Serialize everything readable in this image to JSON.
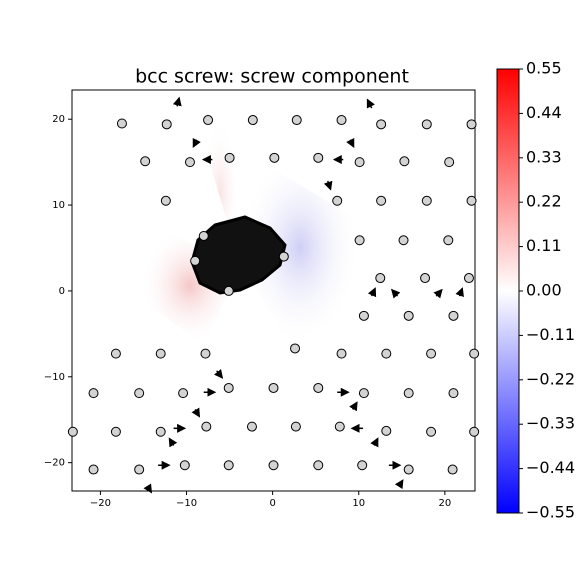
{
  "chart_data": {
    "type": "quiver",
    "title": "bcc screw: screw component",
    "xlim": [
      -23.3,
      23.5
    ],
    "ylim": [
      -23.3,
      23.4
    ],
    "xticks": [
      {
        "value": -20,
        "label": "−20"
      },
      {
        "value": -10,
        "label": "−10"
      },
      0,
      10,
      20
    ],
    "yticks": [
      {
        "value": -20,
        "label": "−20"
      },
      {
        "value": -10,
        "label": "−10"
      },
      0,
      10,
      20
    ],
    "atoms": {
      "color": "#d3d3d3",
      "x": [
        -17.5,
        -12.3,
        -7.5,
        -2.3,
        2.8,
        8.0,
        12.6,
        17.9,
        23.1,
        -14.8,
        -9.6,
        -5.0,
        0.2,
        5.3,
        10.1,
        15.3,
        20.5,
        -12.4,
        7.5,
        12.6,
        17.9,
        23.1,
        10.1,
        15.2,
        20.4,
        12.5,
        17.7,
        22.8,
        10.6,
        15.8,
        21.0,
        -8.0,
        -9.0,
        -5.1,
        1.3,
        2.6,
        -18.2,
        -13.0,
        -7.8,
        8.0,
        13.2,
        18.4,
        23.4,
        -20.8,
        -15.5,
        -10.4,
        -5.1,
        0.1,
        5.3,
        10.6,
        15.8,
        21.0,
        -23.2,
        -18.2,
        -13.0,
        -7.7,
        -2.4,
        2.7,
        7.8,
        13.2,
        18.4,
        23.4,
        -20.8,
        -15.5,
        -10.2,
        -5.1,
        0.1,
        5.3,
        10.4,
        15.8,
        20.9
      ],
      "y": [
        19.5,
        19.4,
        19.9,
        19.9,
        19.9,
        19.9,
        19.4,
        19.4,
        19.4,
        15.1,
        15.0,
        15.5,
        15.5,
        15.5,
        15.0,
        15.1,
        15.0,
        10.5,
        10.5,
        10.5,
        10.5,
        10.5,
        5.9,
        5.9,
        5.9,
        1.5,
        1.5,
        1.5,
        -2.9,
        -2.9,
        -2.9,
        6.4,
        3.5,
        0.0,
        4.0,
        -6.7,
        -7.3,
        -7.3,
        -7.3,
        -7.3,
        -7.3,
        -7.3,
        -7.3,
        -11.9,
        -11.9,
        -11.9,
        -11.3,
        -11.3,
        -11.3,
        -11.9,
        -11.9,
        -11.9,
        -16.4,
        -16.4,
        -16.4,
        -15.8,
        -15.8,
        -15.8,
        -15.8,
        -16.3,
        -16.4,
        -16.4,
        -20.8,
        -20.8,
        -20.3,
        -20.3,
        -20.3,
        -20.3,
        -20.3,
        -20.8,
        -20.8
      ]
    },
    "arrows": {
      "color": "#000000",
      "x": [
        -11.1,
        11.5,
        -8.8,
        9.0,
        -7.0,
        8.2,
        6.4,
        11.5,
        14.5,
        19.0,
        21.7,
        -6.5,
        -8.0,
        7.5,
        -9.0,
        9.3,
        -11.5,
        10.5,
        -11.5,
        11.8,
        -13.3,
        13.5,
        -14.5,
        14.7
      ],
      "y": [
        21.5,
        21.3,
        17.6,
        17.6,
        15.3,
        15.3,
        12.8,
        -0.6,
        -0.6,
        -0.6,
        -0.6,
        -9.3,
        -11.8,
        -11.8,
        -13.8,
        -13.8,
        -16.0,
        -16.0,
        -18.0,
        -18.0,
        -20.3,
        -20.3,
        -22.8,
        -22.7
      ],
      "u": [
        0.3,
        -0.6,
        -0.5,
        0.5,
        -1.3,
        -1.3,
        0.4,
        0.5,
        -0.8,
        0.8,
        0.4,
        0.8,
        1.6,
        1.6,
        0.6,
        0.6,
        1.6,
        -1.6,
        -0.6,
        0.5,
        1.6,
        1.6,
        0.5,
        0.5
      ],
      "v": [
        1.2,
        1.2,
        -1.0,
        -1.0,
        0,
        0,
        -1.2,
        1.1,
        0.9,
        0.9,
        1.1,
        -1.0,
        0,
        0,
        -1.0,
        1.0,
        0,
        0,
        1.0,
        1.0,
        0,
        0,
        -0.8,
        0.8
      ]
    },
    "colorbar": {
      "cmap": "bwr",
      "clim": [
        -0.55,
        0.55
      ],
      "ticks": [
        0.55,
        0.44,
        0.33,
        0.22,
        0.11,
        {
          "value": 0,
          "label": "0.00"
        },
        {
          "value": -0.11,
          "label": "−0.11"
        },
        {
          "value": -0.22,
          "label": "−0.22"
        },
        {
          "value": -0.33,
          "label": "−0.33"
        },
        {
          "value": -0.44,
          "label": "−0.44"
        },
        {
          "value": -0.55,
          "label": "−0.55"
        }
      ]
    }
  }
}
